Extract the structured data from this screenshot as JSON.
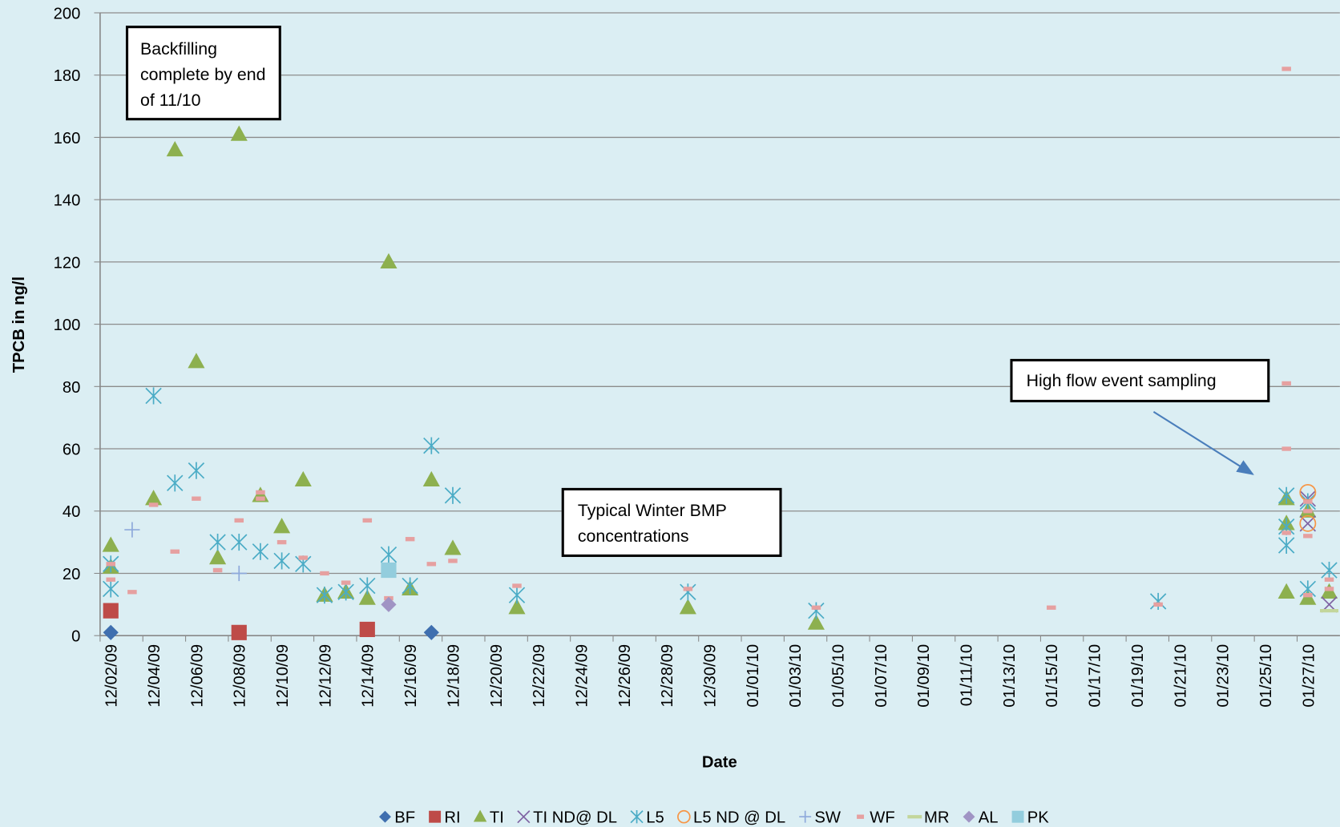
{
  "chart_data": {
    "type": "scatter",
    "y_label": "TPCB in ng/l",
    "x_label": "Date",
    "ylim": [
      0,
      200
    ],
    "yticks": [
      0,
      20,
      40,
      60,
      80,
      100,
      120,
      140,
      160,
      180,
      200
    ],
    "grid": true,
    "xlim": [
      "12/02/09",
      "01/28/10"
    ],
    "xticks": [
      "12/02/09",
      "12/04/09",
      "12/06/09",
      "12/08/09",
      "12/10/09",
      "12/12/09",
      "12/14/09",
      "12/16/09",
      "12/18/09",
      "12/20/09",
      "12/22/09",
      "12/24/09",
      "12/26/09",
      "12/28/09",
      "12/30/09",
      "01/01/10",
      "01/03/10",
      "01/05/10",
      "01/07/10",
      "01/09/10",
      "01/11/10",
      "01/13/10",
      "01/15/10",
      "01/17/10",
      "01/19/10",
      "01/21/10",
      "01/23/10",
      "01/25/10",
      "01/27/10"
    ],
    "legend": "bottom",
    "annotations": [
      "Backfilling complete  by end of 11/10",
      "High flow event sampling",
      "Typical Winter BMP concentrations"
    ],
    "series": [
      {
        "name": "BF",
        "color": "#3f6faf",
        "marker": "diamond",
        "x": [
          "12/02/09",
          "12/17/09"
        ],
        "values": [
          1,
          1
        ]
      },
      {
        "name": "RI",
        "color": "#be4b48",
        "marker": "square",
        "x": [
          "12/02/09",
          "12/08/09",
          "12/14/09"
        ],
        "values": [
          8,
          1,
          2
        ]
      },
      {
        "name": "TI",
        "color": "#8db04f",
        "marker": "triangle",
        "x": [
          "12/02/09",
          "12/02/09",
          "12/04/09",
          "12/05/09",
          "12/06/09",
          "12/07/09",
          "12/08/09",
          "12/09/09",
          "12/10/09",
          "12/11/09",
          "12/12/09",
          "12/13/09",
          "12/14/09",
          "12/15/09",
          "12/16/09",
          "12/17/09",
          "12/18/09",
          "12/21/09",
          "12/29/09",
          "01/04/10",
          "01/26/10",
          "01/26/10",
          "01/26/10",
          "01/27/10",
          "01/27/10",
          "01/28/10"
        ],
        "values": [
          29,
          22,
          44,
          156,
          88,
          25,
          161,
          45,
          35,
          50,
          13,
          14,
          12,
          120,
          15,
          50,
          28,
          9,
          9,
          4,
          14,
          44,
          36,
          12,
          40,
          14
        ]
      },
      {
        "name": "TI ND@ DL",
        "color": "#7f63a3",
        "marker": "x",
        "x": [
          "01/27/10",
          "01/27/10",
          "01/28/10"
        ],
        "values": [
          44,
          36,
          10
        ]
      },
      {
        "name": "L5",
        "color": "#4bacc6",
        "marker": "asterisk",
        "x": [
          "12/02/09",
          "12/02/09",
          "12/04/09",
          "12/05/09",
          "12/06/09",
          "12/07/09",
          "12/08/09",
          "12/09/09",
          "12/10/09",
          "12/11/09",
          "12/12/09",
          "12/13/09",
          "12/14/09",
          "12/15/09",
          "12/16/09",
          "12/17/09",
          "12/18/09",
          "12/21/09",
          "12/29/09",
          "01/04/10",
          "01/20/10",
          "01/26/10",
          "01/26/10",
          "01/26/10",
          "01/27/10",
          "01/27/10",
          "01/28/10"
        ],
        "values": [
          15,
          23,
          77,
          49,
          53,
          30,
          30,
          27,
          24,
          23,
          13,
          14,
          16,
          26,
          16,
          61,
          45,
          13,
          14,
          8,
          11,
          29,
          35,
          45,
          15,
          43,
          21
        ]
      },
      {
        "name": "L5 ND @ DL",
        "color": "#f79646",
        "marker": "circle",
        "x": [
          "01/27/10",
          "01/27/10"
        ],
        "values": [
          46,
          36
        ]
      },
      {
        "name": "SW",
        "color": "#8ea9db",
        "marker": "plus",
        "x": [
          "12/03/09",
          "12/08/09"
        ],
        "values": [
          34,
          20
        ]
      },
      {
        "name": "WF",
        "color": "#e6a0a0",
        "marker": "dash",
        "x": [
          "12/02/09",
          "12/02/09",
          "12/03/09",
          "12/04/09",
          "12/05/09",
          "12/06/09",
          "12/07/09",
          "12/08/09",
          "12/09/09",
          "12/09/09",
          "12/10/09",
          "12/11/09",
          "12/12/09",
          "12/13/09",
          "12/14/09",
          "12/15/09",
          "12/16/09",
          "12/17/09",
          "12/18/09",
          "12/21/09",
          "12/29/09",
          "01/04/10",
          "01/15/10",
          "01/20/10",
          "01/26/10",
          "01/26/10",
          "01/26/10",
          "01/26/10",
          "01/27/10",
          "01/27/10",
          "01/27/10",
          "01/27/10",
          "01/28/10",
          "01/28/10"
        ],
        "values": [
          23,
          18,
          14,
          42,
          27,
          44,
          21,
          37,
          46,
          44,
          30,
          25,
          20,
          17,
          37,
          12,
          31,
          23,
          24,
          16,
          15,
          9,
          9,
          10,
          182,
          81,
          60,
          33,
          43,
          40,
          32,
          13,
          18,
          15
        ]
      },
      {
        "name": "MR",
        "color": "#c3d69b",
        "marker": "line",
        "x": [
          "01/28/10"
        ],
        "values": [
          8
        ]
      },
      {
        "name": "AL",
        "color": "#a094c4",
        "marker": "diamond",
        "x": [
          "12/15/09"
        ],
        "values": [
          10
        ]
      },
      {
        "name": "PK",
        "color": "#93cddd",
        "marker": "square",
        "x": [
          "12/15/09"
        ],
        "values": [
          21
        ]
      }
    ]
  }
}
